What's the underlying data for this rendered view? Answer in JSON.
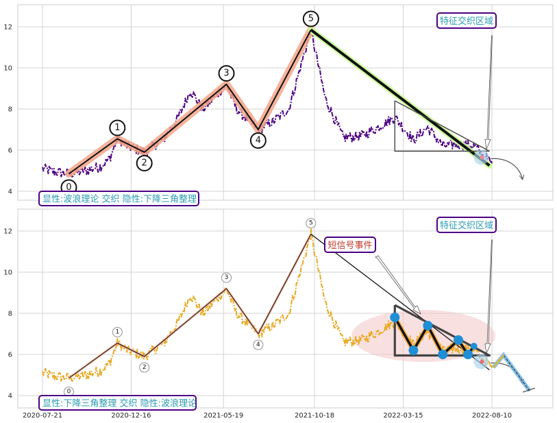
{
  "chart_data": [
    {
      "type": "line",
      "title": "",
      "xlabel": "",
      "ylabel": "",
      "ylim": [
        3.5,
        13.2
      ],
      "x_tick_labels": [],
      "y_ticks": [
        "4",
        "6",
        "8",
        "10",
        "12"
      ],
      "grid": true,
      "style": "emphasis-upper",
      "colors": {
        "price": "#4b0082",
        "wave": "#111111",
        "wave_glow": "#f3a488",
        "down": "#111111",
        "down_glow": "#ccff99",
        "triangle": "#444444"
      },
      "wave_points": [
        {
          "label": "0",
          "date": "2020-09-03",
          "value": 4.85
        },
        {
          "label": "1",
          "date": "2020-11-23",
          "value": 6.55
        },
        {
          "label": "2",
          "date": "2021-01-07",
          "value": 5.9
        },
        {
          "label": "3",
          "date": "2021-05-24",
          "value": 9.2
        },
        {
          "label": "4",
          "date": "2021-07-16",
          "value": 7.0
        },
        {
          "label": "5",
          "date": "2021-10-12",
          "value": 11.85
        }
      ],
      "downtrend": {
        "start_date": "2021-10-12",
        "start_value": 11.85,
        "end_date": "2022-08-06",
        "end_value": 5.25
      },
      "triangle": {
        "top_left": [
          "2022-03-01",
          8.4
        ],
        "bottom_left": [
          "2022-03-01",
          5.95
        ],
        "right": [
          "2022-08-06",
          5.95
        ]
      },
      "annotations": {
        "feature_label": "显性:波浪理论 交织 隐性:下降三角整理",
        "zone_label": "特征交织区域"
      }
    },
    {
      "type": "line",
      "title": "",
      "xlabel": "",
      "ylabel": "",
      "ylim": [
        3.5,
        13.2
      ],
      "x_tick_labels": [
        "2020-07-21",
        "2020-12-16",
        "2021-05-19",
        "2021-10-18",
        "2022-03-15",
        "2022-08-10"
      ],
      "y_ticks": [
        "4",
        "6",
        "8",
        "10",
        "12"
      ],
      "grid": true,
      "style": "emphasis-lower",
      "colors": {
        "price": "#e8a820",
        "wave": "#111111",
        "wave_glow": "#f3a488",
        "down": "#111111",
        "triangle": "#444444",
        "zig": "#111111",
        "zig_glow": "#f0a030",
        "dots": "#1f8fd6"
      },
      "wave_points": [
        {
          "label": "0",
          "date": "2020-09-03",
          "value": 4.85
        },
        {
          "label": "1",
          "date": "2020-11-23",
          "value": 6.55
        },
        {
          "label": "2",
          "date": "2021-01-07",
          "value": 5.9
        },
        {
          "label": "3",
          "date": "2021-05-24",
          "value": 9.2
        },
        {
          "label": "4",
          "date": "2021-07-16",
          "value": 7.0
        },
        {
          "label": "5",
          "date": "2021-10-12",
          "value": 11.85
        }
      ],
      "downtrend": {
        "start_date": "2021-10-12",
        "start_value": 11.85,
        "end_date": "2022-08-06",
        "end_value": 5.25
      },
      "triangle": {
        "top_left": [
          "2022-03-01",
          8.4
        ],
        "bottom_left": [
          "2022-03-01",
          5.95
        ],
        "right": [
          "2022-08-06",
          5.95
        ]
      },
      "zigzag_points": [
        {
          "date": "2022-03-01",
          "value": 7.8
        },
        {
          "date": "2022-04-01",
          "value": 6.2
        },
        {
          "date": "2022-04-25",
          "value": 7.4
        },
        {
          "date": "2022-05-20",
          "value": 6.0
        },
        {
          "date": "2022-06-15",
          "value": 6.7
        },
        {
          "date": "2022-07-01",
          "value": 6.0
        },
        {
          "date": "2022-07-11",
          "value": 6.4
        }
      ],
      "annotations": {
        "feature_label": "显性:下降三角整理 交织 隐性:波浪理论",
        "zone_label": "特征交织区域",
        "event_label": "短信号事件"
      }
    }
  ]
}
